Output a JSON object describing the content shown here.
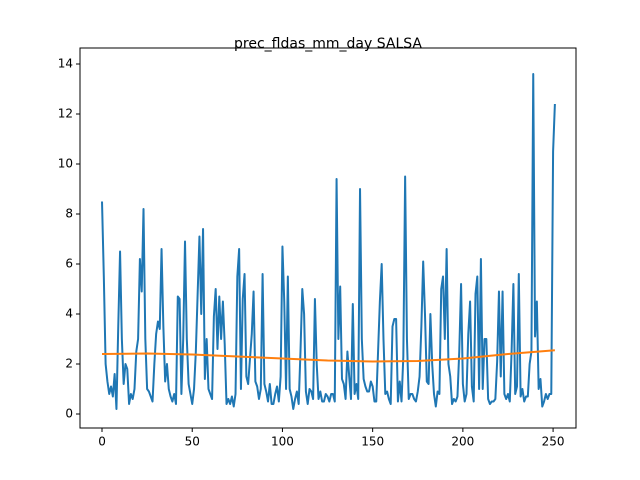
{
  "chart_data": {
    "type": "line",
    "title": "prec_fldas_mm_day SALSA",
    "x": [
      0,
      1,
      2,
      3,
      4,
      5,
      6,
      7,
      8,
      9,
      10,
      11,
      12,
      13,
      14,
      15,
      16,
      17,
      18,
      19,
      20,
      21,
      22,
      23,
      24,
      25,
      26,
      27,
      28,
      29,
      30,
      31,
      32,
      33,
      34,
      35,
      36,
      37,
      38,
      39,
      40,
      41,
      42,
      43,
      44,
      45,
      46,
      47,
      48,
      49,
      50,
      51,
      52,
      53,
      54,
      55,
      56,
      57,
      58,
      59,
      60,
      61,
      62,
      63,
      64,
      65,
      66,
      67,
      68,
      69,
      70,
      71,
      72,
      73,
      74,
      75,
      76,
      77,
      78,
      79,
      80,
      81,
      82,
      83,
      84,
      85,
      86,
      87,
      88,
      89,
      90,
      91,
      92,
      93,
      94,
      95,
      96,
      97,
      98,
      99,
      100,
      101,
      102,
      103,
      104,
      105,
      106,
      107,
      108,
      109,
      110,
      111,
      112,
      113,
      114,
      115,
      116,
      117,
      118,
      119,
      120,
      121,
      122,
      123,
      124,
      125,
      126,
      127,
      128,
      129,
      130,
      131,
      132,
      133,
      134,
      135,
      136,
      137,
      138,
      139,
      140,
      141,
      142,
      143,
      144,
      145,
      146,
      147,
      148,
      149,
      150,
      151,
      152,
      153,
      154,
      155,
      156,
      157,
      158,
      159,
      160,
      161,
      162,
      163,
      164,
      165,
      166,
      167,
      168,
      169,
      170,
      171,
      172,
      173,
      174,
      175,
      176,
      177,
      178,
      179,
      180,
      181,
      182,
      183,
      184,
      185,
      186,
      187,
      188,
      189,
      190,
      191,
      192,
      193,
      194,
      195,
      196,
      197,
      198,
      199,
      200,
      201,
      202,
      203,
      204,
      205,
      206,
      207,
      208,
      209,
      210,
      211,
      212,
      213,
      214,
      215,
      216,
      217,
      218,
      219,
      220,
      221,
      222,
      223,
      224,
      225,
      226,
      227,
      228,
      229,
      230,
      231,
      232,
      233,
      234,
      235,
      236,
      237,
      238,
      239,
      240,
      241,
      242,
      243,
      244,
      245,
      246,
      247,
      248,
      249,
      250,
      251
    ],
    "series": [
      {
        "color": "#1f77b4",
        "values": [
          8.5,
          5.5,
          2,
          1.3,
          0.8,
          1.1,
          0.7,
          1.6,
          0.2,
          3.5,
          6.5,
          3,
          1.2,
          2,
          1.8,
          0.4,
          0.8,
          0.6,
          1,
          2.5,
          3,
          6.2,
          4.9,
          8.2,
          3,
          1,
          0.9,
          0.7,
          0.5,
          2,
          3.2,
          3.7,
          3.4,
          6.6,
          3.5,
          1.3,
          2,
          1,
          0.7,
          0.5,
          0.8,
          0.4,
          4.7,
          4.6,
          0.8,
          3,
          6.9,
          3,
          1.2,
          0.8,
          0.4,
          1,
          2.5,
          4.8,
          7.1,
          4,
          7.4,
          1.4,
          3,
          1,
          0.8,
          0.6,
          3.9,
          5,
          2.6,
          4.7,
          3,
          4.5,
          2.8,
          0.4,
          0.6,
          0.4,
          0.7,
          0.3,
          0.8,
          5.5,
          6.6,
          1,
          4.6,
          5.6,
          1.5,
          1.2,
          2.2,
          3.2,
          4.9,
          1.3,
          1.1,
          0.6,
          1,
          5.6,
          1.2,
          0.9,
          0.5,
          1.2,
          0.4,
          0.4,
          0.8,
          1.1,
          0.5,
          1.5,
          6.7,
          4.5,
          1,
          5.5,
          1,
          0.7,
          0.2,
          0.6,
          0.9,
          0.4,
          2.5,
          5,
          4,
          0.9,
          0.4,
          1,
          0.9,
          0.6,
          4.6,
          2,
          0.6,
          0.9,
          0.5,
          0.5,
          0.8,
          0.7,
          0.5,
          0.8,
          0.8,
          0.5,
          9.4,
          3,
          5.1,
          1.4,
          1.2,
          0.6,
          2.5,
          1.5,
          0.6,
          4.4,
          0.8,
          1.2,
          0.6,
          9,
          3,
          1.4,
          1.1,
          0.9,
          0.9,
          1.3,
          1.1,
          0.5,
          0.5,
          2.5,
          4.5,
          6,
          3,
          0.8,
          0.9,
          0.6,
          0.4,
          3.5,
          3.8,
          3.8,
          0.5,
          1.3,
          0.5,
          2.3,
          9.5,
          3,
          0.6,
          0.8,
          0.8,
          0.6,
          0.5,
          0.9,
          1.5,
          3.5,
          6.1,
          4,
          1.3,
          1.2,
          4,
          2,
          0.8,
          0.3,
          0.9,
          0.8,
          5,
          5.5,
          3,
          6.6,
          2,
          1.5,
          0.4,
          0.6,
          0.5,
          0.7,
          2.5,
          5.2,
          1.2,
          0.5,
          0.8,
          3.2,
          4.5,
          1.1,
          0.5,
          4.8,
          5.5,
          1,
          6.2,
          1,
          3,
          3,
          0.6,
          0.4,
          0.5,
          0.5,
          0.6,
          2.1,
          4.9,
          1.5,
          4.9,
          0.8,
          0.6,
          0.8,
          0.5,
          2.5,
          5.2,
          0.8,
          1.1,
          5.6,
          0.7,
          1,
          0.5,
          0.7,
          0.7,
          2,
          2.5,
          13.6,
          3.1,
          4.5,
          1,
          1.4,
          0.3,
          0.5,
          0.8,
          0.6,
          0.8,
          0.8,
          10.5,
          12.4
        ]
      },
      {
        "color": "#ff7f0e",
        "x": [
          0,
          25,
          50,
          75,
          100,
          125,
          150,
          175,
          200,
          225,
          251
        ],
        "values": [
          2.4,
          2.42,
          2.38,
          2.3,
          2.22,
          2.14,
          2.1,
          2.12,
          2.22,
          2.4,
          2.55
        ]
      }
    ],
    "xlim": [
      -12.2,
      262.7
    ],
    "ylim": [
      -0.56,
      14.64
    ],
    "xticks": [
      0,
      50,
      100,
      150,
      200,
      250
    ],
    "yticks": [
      0,
      2,
      4,
      6,
      8,
      10,
      12,
      14
    ]
  }
}
